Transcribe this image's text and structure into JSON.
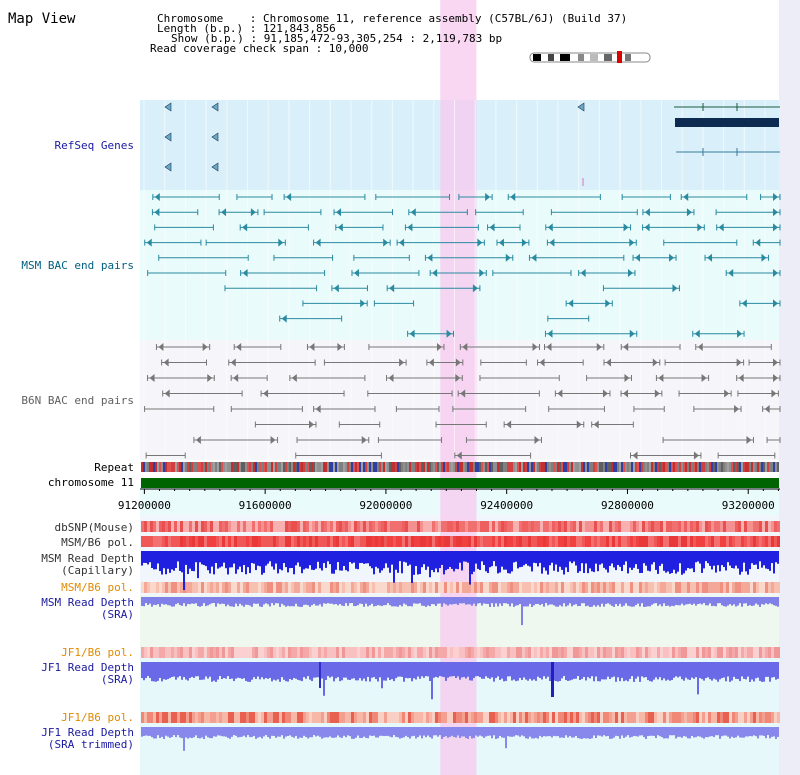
{
  "header": {
    "title": "Map View",
    "chromosome_label": "Chromosome    : Chromosome 11, reference assembly (C57BL/6J) (Build 37)",
    "length_label": "Length (b.p.) : 121,843,856",
    "show_label": "Show (b.p.) : 91,185,472-93,305,254 : 2,119,783 bp",
    "coverage_label": "Read coverage check span : 10,000"
  },
  "view": {
    "start": 91185472,
    "end": 93305254,
    "highlight_start": 92180000,
    "highlight_end": 92300000
  },
  "tracks": {
    "refseq": "RefSeq Genes",
    "msm_bac": "MSM BAC end pairs",
    "b6n_bac": "B6N BAC end pairs",
    "repeat": "Repeat",
    "chromosome": "chromosome 11",
    "dbsnp": "dbSNP(Mouse)",
    "msm_b6_pol": "MSM/B6 pol.",
    "msm_depth_cap_1": "MSM Read Depth",
    "msm_depth_cap_2": "(Capillary)",
    "msm_b6_pol_2": "MSM/B6 pol.",
    "msm_depth_sra_1": "MSM Read Depth",
    "msm_depth_sra_2": "(SRA)",
    "jf1_b6_pol": "JF1/B6 pol.",
    "jf1_depth_sra_1": "JF1 Read Depth",
    "jf1_depth_sra_2": "(SRA)",
    "jf1_b6_pol_2": "JF1/B6 pol.",
    "jf1_depth_trim_1": "JF1 Read Depth",
    "jf1_depth_trim_2": "(SRA trimmed)"
  },
  "axis": {
    "ticks": [
      91200000,
      91600000,
      92000000,
      92400000,
      92800000,
      93200000
    ],
    "tick_labels": [
      "91200000",
      "91600000",
      "92000000",
      "92400000",
      "92800000",
      "93200000"
    ]
  },
  "colors": {
    "refseq_label": "#1a1aa0",
    "msm_label": "#006080",
    "b6n_label": "#606060",
    "pol_orange": "#e08a00",
    "depth_blue": "#1a1aa0"
  }
}
